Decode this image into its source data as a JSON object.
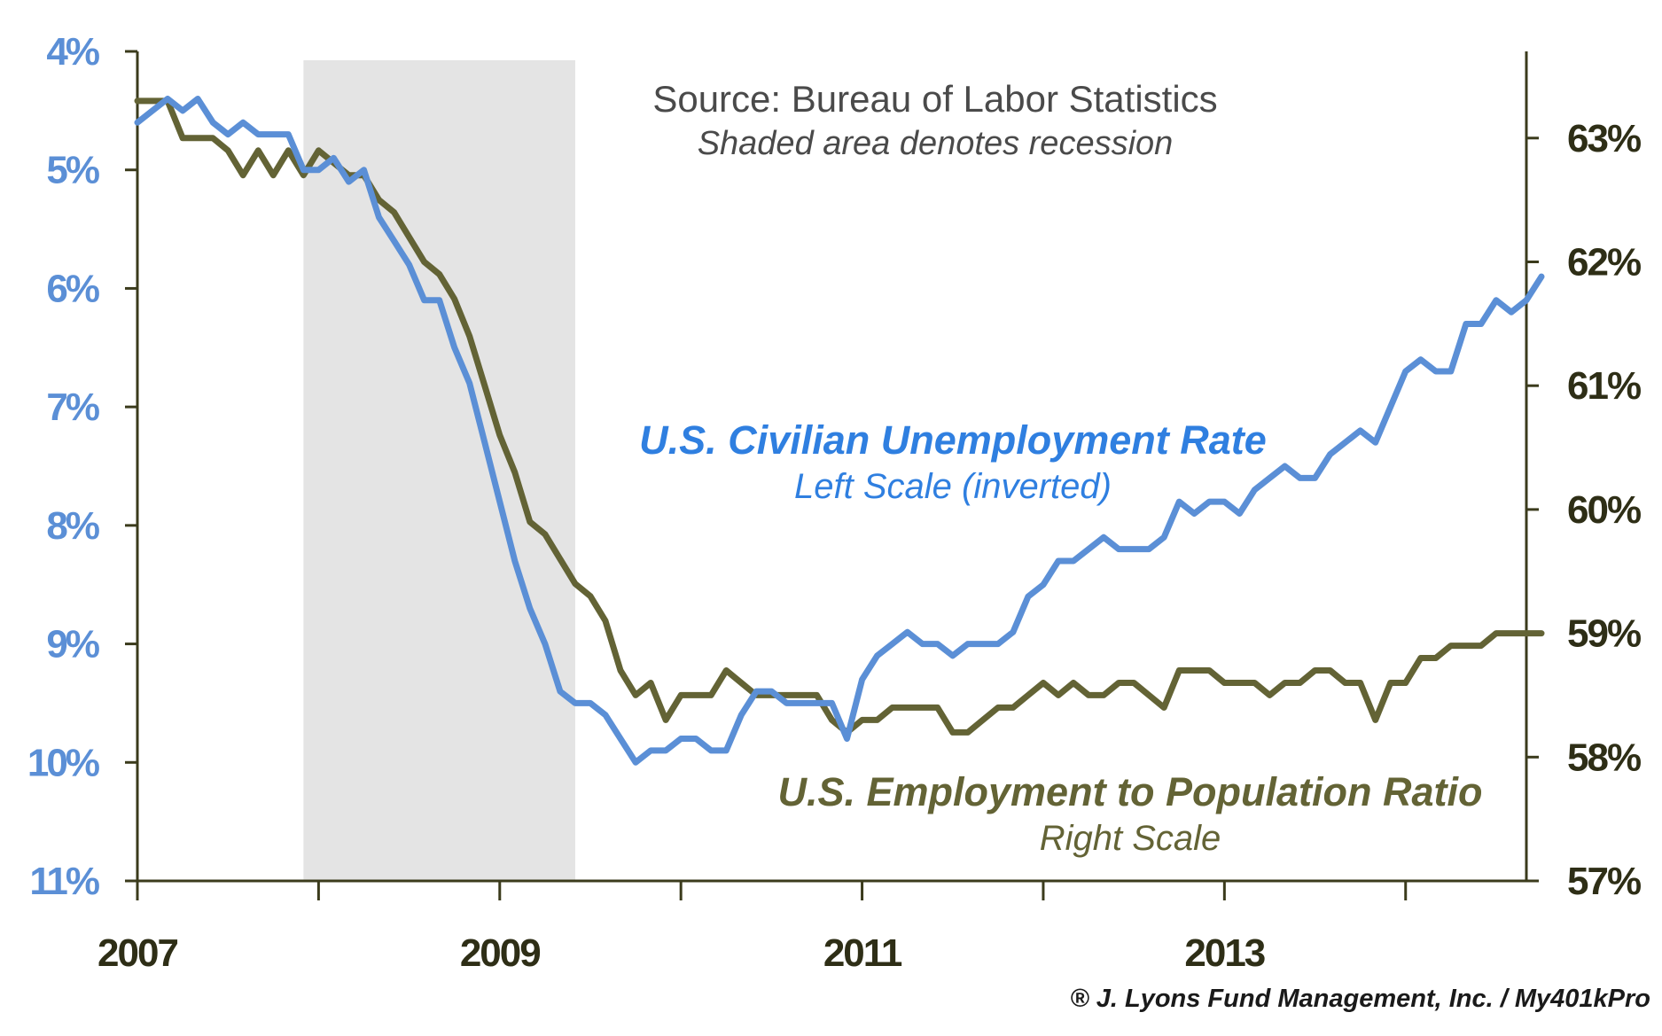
{
  "chart_data": {
    "type": "line",
    "notes": {
      "source": "Source: Bureau of Labor Statistics",
      "shading": "Shaded area denotes recession"
    },
    "copyright": "® J. Lyons Fund Management, Inc. / My401kPro",
    "x_tick_labels": [
      "2007",
      "2009",
      "2011",
      "2013"
    ],
    "x_start": "2007-01",
    "x_end": "2014-09",
    "recession": {
      "start": "2007-12",
      "end": "2009-06"
    },
    "left_axis": {
      "ylim": [
        4,
        11
      ],
      "inverted": true,
      "tick_values": [
        4,
        5,
        6,
        7,
        8,
        9,
        10,
        11
      ],
      "tick_labels": [
        "4%",
        "5%",
        "6%",
        "7%",
        "8%",
        "9%",
        "10%",
        "11%"
      ]
    },
    "right_axis": {
      "ylim": [
        57,
        63.7
      ],
      "tick_values": [
        57,
        58,
        59,
        60,
        61,
        62,
        63
      ],
      "tick_labels": [
        "57%",
        "58%",
        "59%",
        "60%",
        "61%",
        "62%",
        "63%"
      ]
    },
    "series": [
      {
        "name": "U.S. Civilian Unemployment Rate",
        "axis_label": "Left Scale (inverted)",
        "color": "#5b8fd6",
        "axis": "left",
        "values": [
          4.6,
          4.5,
          4.4,
          4.5,
          4.4,
          4.6,
          4.7,
          4.6,
          4.7,
          4.7,
          4.7,
          5.0,
          5.0,
          4.9,
          5.1,
          5.0,
          5.4,
          5.6,
          5.8,
          6.1,
          6.1,
          6.5,
          6.8,
          7.3,
          7.8,
          8.3,
          8.7,
          9.0,
          9.4,
          9.5,
          9.5,
          9.6,
          9.8,
          10.0,
          9.9,
          9.9,
          9.8,
          9.8,
          9.9,
          9.9,
          9.6,
          9.4,
          9.4,
          9.5,
          9.5,
          9.5,
          9.5,
          9.8,
          9.3,
          9.1,
          9.0,
          8.9,
          9.0,
          9.0,
          9.1,
          9.0,
          9.0,
          9.0,
          8.9,
          8.6,
          8.5,
          8.3,
          8.3,
          8.2,
          8.1,
          8.2,
          8.2,
          8.2,
          8.1,
          7.8,
          7.9,
          7.8,
          7.8,
          7.9,
          7.7,
          7.6,
          7.5,
          7.6,
          7.6,
          7.4,
          7.3,
          7.2,
          7.3,
          7.0,
          6.7,
          6.6,
          6.7,
          6.7,
          6.3,
          6.3,
          6.1,
          6.2,
          6.1,
          5.9
        ]
      },
      {
        "name": "U.S. Employment to Population Ratio",
        "axis_label": "Right Scale",
        "color": "#636335",
        "axis": "right",
        "values": [
          63.3,
          63.3,
          63.3,
          63.0,
          63.0,
          63.0,
          62.9,
          62.7,
          62.9,
          62.7,
          62.9,
          62.7,
          62.9,
          62.8,
          62.7,
          62.7,
          62.5,
          62.4,
          62.2,
          62.0,
          61.9,
          61.7,
          61.4,
          61.0,
          60.6,
          60.3,
          59.9,
          59.8,
          59.6,
          59.4,
          59.3,
          59.1,
          58.7,
          58.5,
          58.6,
          58.3,
          58.5,
          58.5,
          58.5,
          58.7,
          58.6,
          58.5,
          58.5,
          58.5,
          58.5,
          58.5,
          58.3,
          58.2,
          58.3,
          58.3,
          58.4,
          58.4,
          58.4,
          58.4,
          58.2,
          58.2,
          58.3,
          58.4,
          58.4,
          58.5,
          58.6,
          58.5,
          58.6,
          58.5,
          58.5,
          58.6,
          58.6,
          58.5,
          58.4,
          58.7,
          58.7,
          58.7,
          58.6,
          58.6,
          58.6,
          58.5,
          58.6,
          58.6,
          58.7,
          58.7,
          58.6,
          58.6,
          58.3,
          58.6,
          58.6,
          58.8,
          58.8,
          58.9,
          58.9,
          58.9,
          59.0,
          59.0,
          59.0,
          59.0
        ]
      }
    ]
  }
}
